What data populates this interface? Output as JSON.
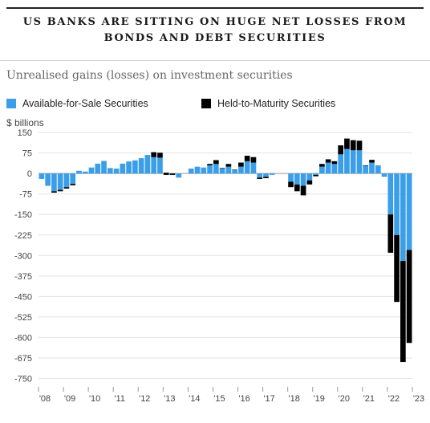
{
  "header": {
    "title_line1": "US BANKS ARE SITTING ON HUGE NET LOSSES FROM",
    "title_line2": "BONDS AND DEBT SECURITIES",
    "subtitle": "Unrealised gains (losses) on investment securities",
    "unit": "$ billions"
  },
  "colors": {
    "afs": "#3a9ee8",
    "htm": "#000000",
    "grid": "#e2e2e2",
    "zero": "#999999"
  },
  "chart_data": {
    "type": "bar",
    "stacked": true,
    "title": "US BANKS ARE SITTING ON HUGE NET LOSSES FROM BONDS AND DEBT SECURITIES",
    "subtitle": "Unrealised gains (losses) on investment securities",
    "xlabel": "",
    "ylabel": "$ billions",
    "ylim": [
      -775,
      165
    ],
    "yticks": [
      150,
      75,
      0,
      -75,
      -150,
      -225,
      -300,
      -375,
      -450,
      -525,
      -600,
      -675,
      -750
    ],
    "grid": true,
    "legend_position": "top",
    "x_start_year": 2008,
    "xtick_labels": [
      "'08",
      "'09",
      "'10",
      "'11",
      "'12",
      "'13",
      "'14",
      "'15",
      "'16",
      "'17",
      "'18",
      "'19",
      "'20",
      "'21",
      "'22",
      "'23"
    ],
    "categories": [
      "2008 Q1",
      "2008 Q2",
      "2008 Q3",
      "2008 Q4",
      "2009 Q1",
      "2009 Q2",
      "2009 Q3",
      "2009 Q4",
      "2010 Q1",
      "2010 Q2",
      "2010 Q3",
      "2010 Q4",
      "2011 Q1",
      "2011 Q2",
      "2011 Q3",
      "2011 Q4",
      "2012 Q1",
      "2012 Q2",
      "2012 Q3",
      "2012 Q4",
      "2013 Q1",
      "2013 Q2",
      "2013 Q3",
      "2013 Q4",
      "2014 Q1",
      "2014 Q2",
      "2014 Q3",
      "2014 Q4",
      "2015 Q1",
      "2015 Q2",
      "2015 Q3",
      "2015 Q4",
      "2016 Q1",
      "2016 Q2",
      "2016 Q3",
      "2016 Q4",
      "2017 Q1",
      "2017 Q2",
      "2017 Q3",
      "2017 Q4",
      "2018 Q1",
      "2018 Q2",
      "2018 Q3",
      "2018 Q4",
      "2019 Q1",
      "2019 Q2",
      "2019 Q3",
      "2019 Q4",
      "2020 Q1",
      "2020 Q2",
      "2020 Q3",
      "2020 Q4",
      "2021 Q1",
      "2021 Q2",
      "2021 Q3",
      "2021 Q4",
      "2022 Q1",
      "2022 Q2",
      "2022 Q3",
      "2022 Q4"
    ],
    "series": [
      {
        "name": "Available-for-Sale Securities",
        "color": "#3a9ee8",
        "values": [
          -20,
          -45,
          -65,
          -60,
          -50,
          -38,
          10,
          7,
          22,
          36,
          46,
          20,
          18,
          36,
          44,
          48,
          56,
          68,
          60,
          58,
          -5,
          -5,
          -15,
          0,
          18,
          25,
          22,
          30,
          35,
          18,
          25,
          12,
          25,
          45,
          40,
          -15,
          -12,
          -5,
          0,
          0,
          -30,
          -40,
          -45,
          -25,
          -5,
          25,
          40,
          35,
          70,
          90,
          85,
          85,
          28,
          40,
          30,
          -12,
          -150,
          -225,
          -320,
          -280
        ]
      },
      {
        "name": "Held-to-Maturity Securities",
        "color": "#000000",
        "values": [
          0,
          0,
          -5,
          -5,
          -5,
          -5,
          0,
          0,
          0,
          0,
          0,
          0,
          0,
          0,
          0,
          0,
          0,
          0,
          18,
          18,
          8,
          5,
          0,
          0,
          0,
          0,
          0,
          5,
          14,
          2,
          10,
          2,
          15,
          20,
          20,
          -5,
          -5,
          0,
          0,
          0,
          -20,
          -25,
          -35,
          -15,
          -5,
          10,
          12,
          10,
          33,
          38,
          37,
          35,
          2,
          10,
          0,
          0,
          -140,
          -245,
          -370,
          -340
        ]
      }
    ]
  }
}
